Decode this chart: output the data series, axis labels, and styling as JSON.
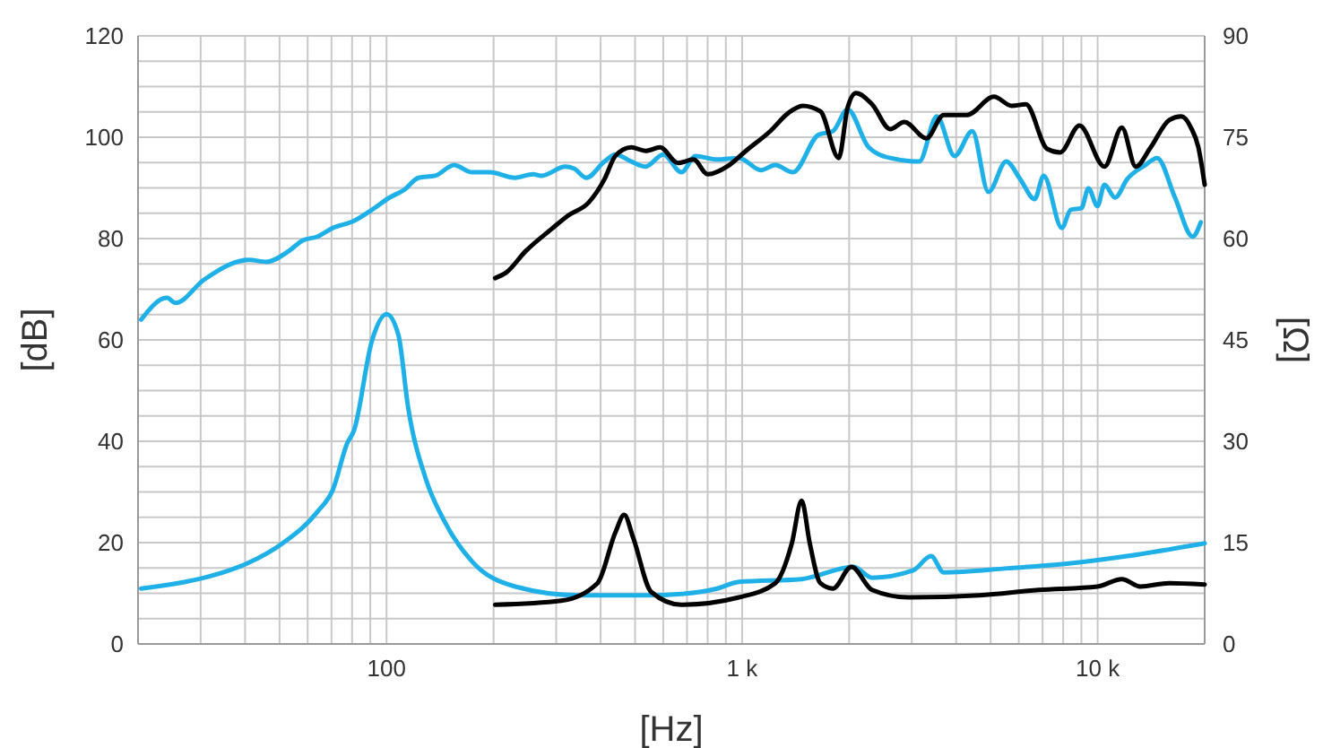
{
  "chart_data": {
    "type": "line",
    "xlabel": "[Hz]",
    "ylabel": "[dB]",
    "y2label": "[Ω]",
    "log": "x",
    "grid": true,
    "marker": "none",
    "line_style": "solid",
    "xlim": [
      20,
      20000
    ],
    "xticks": [
      {
        "value": 20,
        "label": null
      },
      {
        "value": 30,
        "label": null
      },
      {
        "value": 40,
        "label": null
      },
      {
        "value": 50,
        "label": null
      },
      {
        "value": 60,
        "label": null
      },
      {
        "value": 70,
        "label": null
      },
      {
        "value": 80,
        "label": null
      },
      {
        "value": 90,
        "label": null
      },
      100,
      {
        "value": 200,
        "label": null
      },
      {
        "value": 300,
        "label": null
      },
      {
        "value": 400,
        "label": null
      },
      {
        "value": 500,
        "label": null
      },
      {
        "value": 600,
        "label": null
      },
      {
        "value": 700,
        "label": null
      },
      {
        "value": 800,
        "label": null
      },
      {
        "value": 900,
        "label": null
      },
      {
        "value": 1000,
        "label": "1 k"
      },
      {
        "value": 2000,
        "label": null
      },
      {
        "value": 3000,
        "label": null
      },
      {
        "value": 4000,
        "label": null
      },
      {
        "value": 5000,
        "label": null
      },
      {
        "value": 6000,
        "label": null
      },
      {
        "value": 7000,
        "label": null
      },
      {
        "value": 8000,
        "label": null
      },
      {
        "value": 9000,
        "label": null
      },
      {
        "value": 10000,
        "label": "10 k"
      },
      {
        "value": 20000,
        "label": null
      }
    ],
    "ylim": [
      0,
      120
    ],
    "yticks": [
      0,
      {
        "value": 5,
        "label": null
      },
      {
        "value": 10,
        "label": null
      },
      {
        "value": 15,
        "label": null
      },
      20,
      {
        "value": 25,
        "label": null
      },
      {
        "value": 30,
        "label": null
      },
      {
        "value": 35,
        "label": null
      },
      40,
      {
        "value": 45,
        "label": null
      },
      {
        "value": 50,
        "label": null
      },
      {
        "value": 55,
        "label": null
      },
      60,
      {
        "value": 65,
        "label": null
      },
      {
        "value": 70,
        "label": null
      },
      {
        "value": 75,
        "label": null
      },
      80,
      {
        "value": 85,
        "label": null
      },
      {
        "value": 90,
        "label": null
      },
      {
        "value": 95,
        "label": null
      },
      100,
      {
        "value": 105,
        "label": null
      },
      {
        "value": 110,
        "label": null
      },
      {
        "value": 115,
        "label": null
      },
      120
    ],
    "y2lim": [
      0,
      90
    ],
    "y2ticks": [
      0,
      15,
      30,
      45,
      60,
      75,
      90
    ],
    "series": [
      {
        "color": "#1fb0e8",
        "x": [
          20.4,
          24.1,
          25.5,
          30.7,
          41,
          46,
          53,
          58,
          64,
          70.6,
          81,
          91,
          102,
          112,
          123,
          137,
          155,
          174,
          195,
          230,
          258,
          273,
          318,
          337,
          365,
          410,
          440,
          488,
          535,
          600,
          675,
          740,
          850,
          980,
          1130,
          1240,
          1390,
          1640,
          1800,
          1980,
          2270,
          2610,
          3150,
          3530,
          3960,
          4440,
          4930,
          5530,
          6060,
          6650,
          7050,
          7930,
          8400,
          9000,
          9420,
          9990,
          10450,
          11200,
          12100,
          13600,
          14700,
          16500,
          18500,
          19500
        ],
        "values": [
          64,
          68.3,
          67.3,
          71.9,
          75.8,
          75.4,
          77.5,
          79.6,
          80.4,
          82.1,
          83.5,
          85.7,
          88.1,
          89.6,
          92,
          92.4,
          94.5,
          93.1,
          93.1,
          92,
          92.7,
          92.4,
          94.2,
          93.8,
          92,
          95.2,
          96.6,
          95.2,
          94.2,
          96.6,
          93.1,
          96.3,
          95.6,
          95.9,
          93.5,
          94.5,
          93.1,
          100.5,
          101.2,
          105.5,
          98,
          95.9,
          95.2,
          104.1,
          96.3,
          101.2,
          89.2,
          95.2,
          91.7,
          87.8,
          92.4,
          82.1,
          85.7,
          86,
          89.9,
          86.4,
          90.6,
          88.1,
          91.7,
          94.5,
          95.9,
          88.1,
          80.4,
          83.2
        ]
      },
      {
        "color": "#000000",
        "x": [
          202,
          217,
          246,
          290,
          325,
          370,
          410,
          440,
          488,
          535,
          588,
          660,
          730,
          800,
          920,
          1025,
          1200,
          1350,
          1480,
          1660,
          1870,
          1980,
          2090,
          2320,
          2610,
          2860,
          3300,
          3690,
          4290,
          5110,
          5730,
          6280,
          7210,
          7840,
          8890,
          10450,
          11700,
          12800,
          14100,
          15900,
          17200,
          18300,
          19200,
          20000
        ],
        "values": [
          72.2,
          73.3,
          77.5,
          81.8,
          84.6,
          87.1,
          91.7,
          96.3,
          98,
          97.3,
          98,
          94.9,
          95.6,
          92.7,
          94.5,
          97.3,
          101.2,
          104.8,
          106.2,
          105.1,
          95.9,
          105.8,
          108.7,
          106.5,
          101.6,
          103,
          99.8,
          104.4,
          104.4,
          108,
          106.2,
          106.5,
          97.7,
          97,
          102.3,
          94.2,
          101.9,
          94.2,
          98,
          103.4,
          104.1,
          101.9,
          98,
          90.6
        ]
      },
      {
        "color": "#1fb0e8",
        "axis": "y2",
        "x": [
          20.4,
          30.7,
          40.5,
          51,
          64,
          70.6,
          77.5,
          81,
          91,
          100,
          108,
          115,
          129,
          145,
          174,
          230,
          348,
          535,
          675,
          850,
          980,
          1470,
          2060,
          2320,
          3030,
          3400,
          3690,
          5600,
          8300,
          12100,
          20000
        ],
        "values": [
          8.2,
          9.8,
          11.9,
          14.9,
          19.6,
          22.8,
          29.7,
          31.6,
          44.9,
          48.8,
          45.7,
          35,
          24.4,
          18.3,
          12.2,
          8.5,
          7.2,
          7.2,
          7.4,
          8.2,
          9.2,
          9.6,
          11.4,
          9.8,
          10.9,
          13,
          10.6,
          11.2,
          11.9,
          13,
          14.9
        ]
      },
      {
        "color": "#000000",
        "axis": "y2",
        "x": [
          202,
          310,
          392,
          440,
          466,
          494,
          555,
          675,
          980,
          1240,
          1380,
          1470,
          1550,
          1660,
          1800,
          2030,
          2320,
          2930,
          4650,
          6820,
          9990,
          11700,
          13200,
          15900,
          20000
        ],
        "values": [
          5.8,
          6.4,
          9,
          16.5,
          19.1,
          15.7,
          7.7,
          5.8,
          6.9,
          9,
          14.9,
          21.2,
          14.9,
          9,
          8.2,
          11.4,
          8,
          6.9,
          7.2,
          8,
          8.5,
          9.6,
          8.5,
          9,
          8.8
        ]
      }
    ]
  }
}
